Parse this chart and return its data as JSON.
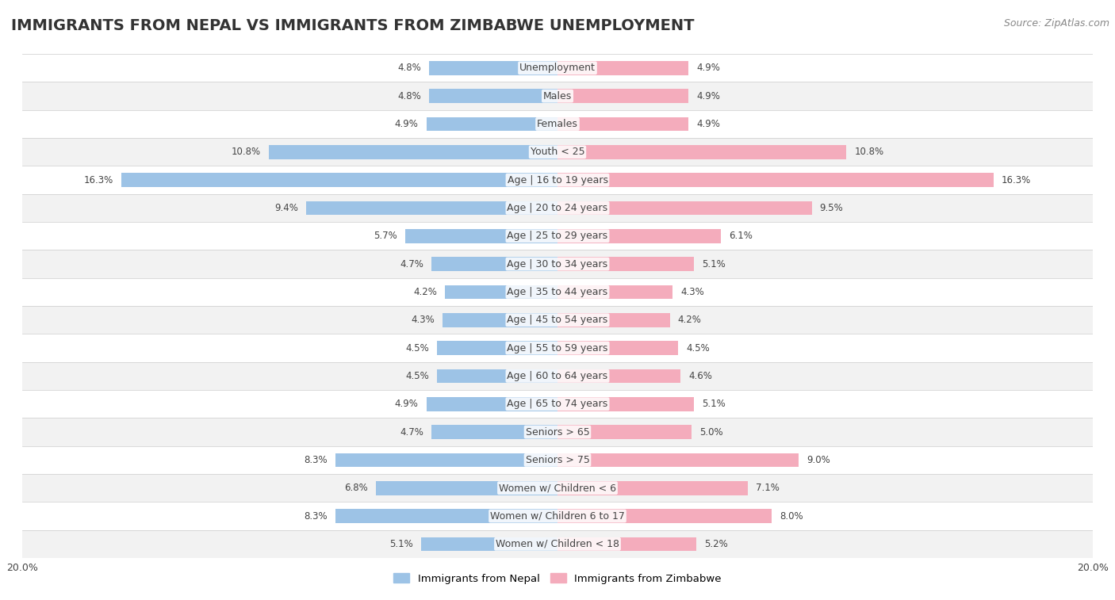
{
  "title": "IMMIGRANTS FROM NEPAL VS IMMIGRANTS FROM ZIMBABWE UNEMPLOYMENT",
  "source": "Source: ZipAtlas.com",
  "categories": [
    "Unemployment",
    "Males",
    "Females",
    "Youth < 25",
    "Age | 16 to 19 years",
    "Age | 20 to 24 years",
    "Age | 25 to 29 years",
    "Age | 30 to 34 years",
    "Age | 35 to 44 years",
    "Age | 45 to 54 years",
    "Age | 55 to 59 years",
    "Age | 60 to 64 years",
    "Age | 65 to 74 years",
    "Seniors > 65",
    "Seniors > 75",
    "Women w/ Children < 6",
    "Women w/ Children 6 to 17",
    "Women w/ Children < 18"
  ],
  "nepal_values": [
    4.8,
    4.8,
    4.9,
    10.8,
    16.3,
    9.4,
    5.7,
    4.7,
    4.2,
    4.3,
    4.5,
    4.5,
    4.9,
    4.7,
    8.3,
    6.8,
    8.3,
    5.1
  ],
  "zimbabwe_values": [
    4.9,
    4.9,
    4.9,
    10.8,
    16.3,
    9.5,
    6.1,
    5.1,
    4.3,
    4.2,
    4.5,
    4.6,
    5.1,
    5.0,
    9.0,
    7.1,
    8.0,
    5.2
  ],
  "nepal_color": "#9DC3E6",
  "zimbabwe_color": "#F4ACBC",
  "nepal_label": "Immigrants from Nepal",
  "zimbabwe_label": "Immigrants from Zimbabwe",
  "background_color": "#ffffff",
  "row_alt_color": "#f2f2f2",
  "row_main_color": "#ffffff",
  "x_max": 20.0,
  "title_fontsize": 14,
  "source_fontsize": 9,
  "label_fontsize": 9,
  "value_fontsize": 8.5,
  "bar_height": 0.5
}
